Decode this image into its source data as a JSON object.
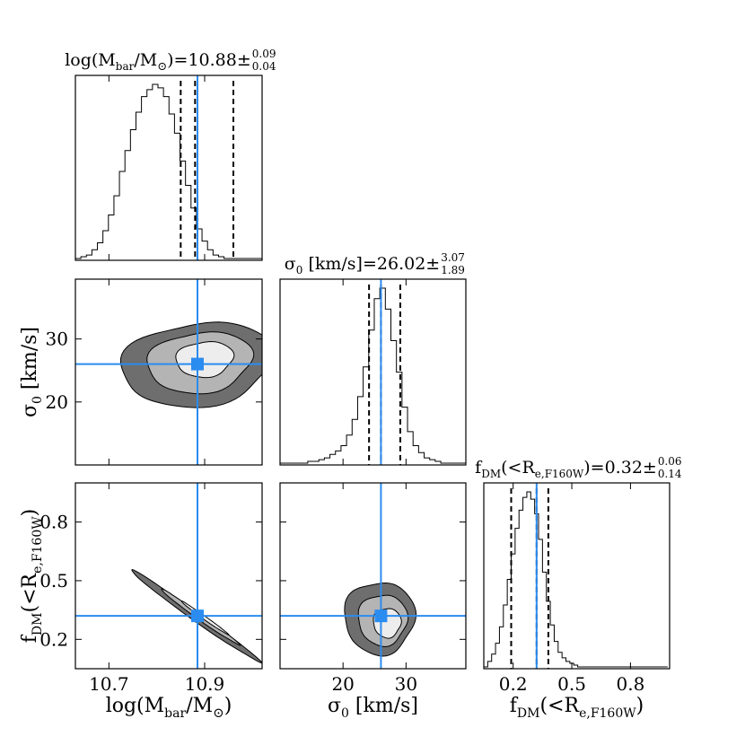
{
  "colors": {
    "truth": "#2b8cf0",
    "contour_outer": "#6e6e6e",
    "contour_mid": "#b4b4b4",
    "contour_inner": "#ededed",
    "frame": "#000000"
  },
  "chart_data": {
    "type": "corner",
    "parameters": [
      {
        "id": "mbar",
        "axis_label": {
          "pre": "log(M",
          "sub": "bar",
          "post": "/M",
          "sym": "⊙",
          "end": ")"
        },
        "title": {
          "prefix": "log(M",
          "sub": "bar",
          "mid": "/M",
          "sym": "⊙",
          "suffix": ")=10.88±",
          "upper": "0.09",
          "lower": "0.04"
        },
        "range": [
          10.63,
          11.02
        ],
        "ticks": [
          10.7,
          10.9
        ],
        "tick_labels": [
          "10.7",
          "10.9"
        ],
        "median": 10.88,
        "q16": 10.85,
        "q84": 10.96,
        "truth": 10.885,
        "hist": {
          "x0": 10.63,
          "dx": 0.0115,
          "counts": [
            0.0,
            0.01,
            0.02,
            0.05,
            0.09,
            0.16,
            0.25,
            0.36,
            0.5,
            0.62,
            0.74,
            0.84,
            0.93,
            0.97,
            1.0,
            0.98,
            0.93,
            0.83,
            0.72,
            0.56,
            0.42,
            0.29,
            0.17,
            0.1,
            0.05,
            0.02,
            0.01,
            0.0,
            0.0,
            0.0,
            0.0,
            0.0,
            0.0,
            0.0
          ]
        }
      },
      {
        "id": "sigma0",
        "axis_label": {
          "pre": "σ",
          "sub": "0",
          "post": " [km/s]"
        },
        "title": {
          "prefix": "σ",
          "sub": "0",
          "suffix": " [km/s]=26.02± ",
          "upper": "3.07",
          "lower": "1.89"
        },
        "range": [
          10,
          39.5
        ],
        "ticks": [
          20,
          30
        ],
        "tick_labels": [
          "20",
          "30"
        ],
        "median": 26.02,
        "q16": 24.13,
        "q84": 29.09,
        "truth": 26.02,
        "hist": {
          "x0": 10,
          "dx": 0.88,
          "counts": [
            0.0,
            0.0,
            0.0,
            0.0,
            0.0,
            0.01,
            0.01,
            0.02,
            0.03,
            0.05,
            0.07,
            0.1,
            0.16,
            0.25,
            0.38,
            0.55,
            0.76,
            0.94,
            1.0,
            0.88,
            0.7,
            0.52,
            0.32,
            0.18,
            0.1,
            0.06,
            0.03,
            0.02,
            0.01,
            0.0,
            0.0,
            0.0,
            0.0,
            0.0
          ]
        }
      },
      {
        "id": "fdm",
        "axis_label": {
          "pre": "f",
          "sub": "DM",
          "post": "(<R",
          "sub2": "e,F160W",
          "end": ")"
        },
        "title": {
          "prefix": "f",
          "sub": "DM",
          "mid": "(<R",
          "sub2": "e,F160W",
          "suffix": ")=0.32±",
          "upper": "0.06",
          "lower": "0.14"
        },
        "range": [
          0.05,
          1.0
        ],
        "ticks": [
          0.2,
          0.5,
          0.8
        ],
        "tick_labels": [
          "0.2",
          "0.5",
          "0.8"
        ],
        "median": 0.32,
        "q16": 0.19,
        "q84": 0.38,
        "truth": 0.32,
        "hist": {
          "x0": 0.05,
          "dx": 0.02,
          "counts": [
            0.0,
            0.03,
            0.07,
            0.13,
            0.22,
            0.34,
            0.48,
            0.62,
            0.76,
            0.86,
            0.93,
            0.96,
            0.92,
            0.84,
            0.7,
            0.52,
            0.36,
            0.23,
            0.14,
            0.08,
            0.05,
            0.03,
            0.02,
            0.01,
            0.0,
            0.0,
            0.0,
            0.0,
            0.0,
            0.0,
            0.0,
            0.0,
            0.0,
            0.0,
            0.0,
            0.0,
            0.0,
            0.0,
            0.0,
            0.0,
            0.0,
            0.0,
            0.0,
            0.0,
            0.0,
            0.0,
            0.0
          ]
        }
      }
    ],
    "contours": [
      {
        "x": "mbar",
        "y": "sigma0",
        "levels": [
          {
            "name": "outer",
            "cx": 10.885,
            "cy": 26.0,
            "rx": 0.16,
            "ry": 6.6,
            "angle": 0.12
          },
          {
            "name": "mid",
            "cx": 10.89,
            "cy": 26.3,
            "rx": 0.11,
            "ry": 4.8,
            "angle": 0.12
          },
          {
            "name": "inner",
            "cx": 10.9,
            "cy": 26.8,
            "rx": 0.06,
            "ry": 2.8,
            "angle": 0.1
          }
        ],
        "truth": [
          10.885,
          26.02
        ]
      },
      {
        "x": "mbar",
        "y": "fdm",
        "levels": [
          {
            "name": "outer",
            "cx": 10.88,
            "cy": 0.32,
            "rx": 0.165,
            "ry": 0.022,
            "angle": -0.62
          },
          {
            "name": "mid",
            "cx": 10.89,
            "cy": 0.315,
            "rx": 0.1,
            "ry": 0.014,
            "angle": -0.62
          },
          {
            "name": "inner",
            "cx": 10.9,
            "cy": 0.31,
            "rx": 0.06,
            "ry": 0.008,
            "angle": -0.62
          }
        ],
        "truth": [
          10.885,
          0.32
        ]
      },
      {
        "x": "sigma0",
        "y": "fdm",
        "levels": [
          {
            "name": "outer",
            "cx": 25.8,
            "cy": 0.31,
            "rx": 5.6,
            "ry": 0.185,
            "angle": 0.0
          },
          {
            "name": "mid",
            "cx": 26.3,
            "cy": 0.3,
            "rx": 3.9,
            "ry": 0.13,
            "angle": 0.0
          },
          {
            "name": "inner",
            "cx": 27.0,
            "cy": 0.285,
            "rx": 2.2,
            "ry": 0.075,
            "angle": 0.0
          }
        ],
        "truth": [
          26.02,
          0.32
        ]
      }
    ]
  }
}
